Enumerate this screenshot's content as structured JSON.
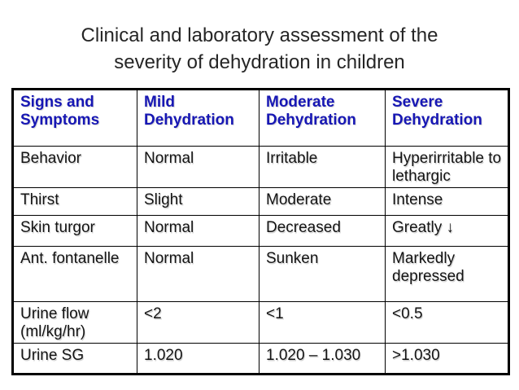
{
  "title": {
    "lines": [
      "Clinical and laboratory assessment of the",
      "severity of dehydration in children"
    ]
  },
  "colors": {
    "header_text": "#1717b4",
    "body_text": "#141414",
    "border": "#000000",
    "background": "#ffffff"
  },
  "table": {
    "columns": [
      "Signs and Symptoms",
      "Mild Dehydration",
      "Moderate Dehydration",
      "Severe Dehydration"
    ],
    "rows": [
      [
        "Behavior",
        "Normal",
        "Irritable",
        "Hyperirritable to lethargic"
      ],
      [
        "Thirst",
        "Slight",
        "Moderate",
        "Intense"
      ],
      [
        "Skin turgor",
        "Normal",
        "Decreased",
        "Greatly ↓"
      ],
      [
        "Ant. fontanelle",
        "Normal",
        "Sunken",
        "Markedly depressed"
      ],
      [
        "Urine flow (ml/kg/hr)",
        "<2",
        "<1",
        "<0.5"
      ],
      [
        "Urine SG",
        "1.020",
        "1.020 – 1.030",
        ">1.030"
      ]
    ]
  }
}
